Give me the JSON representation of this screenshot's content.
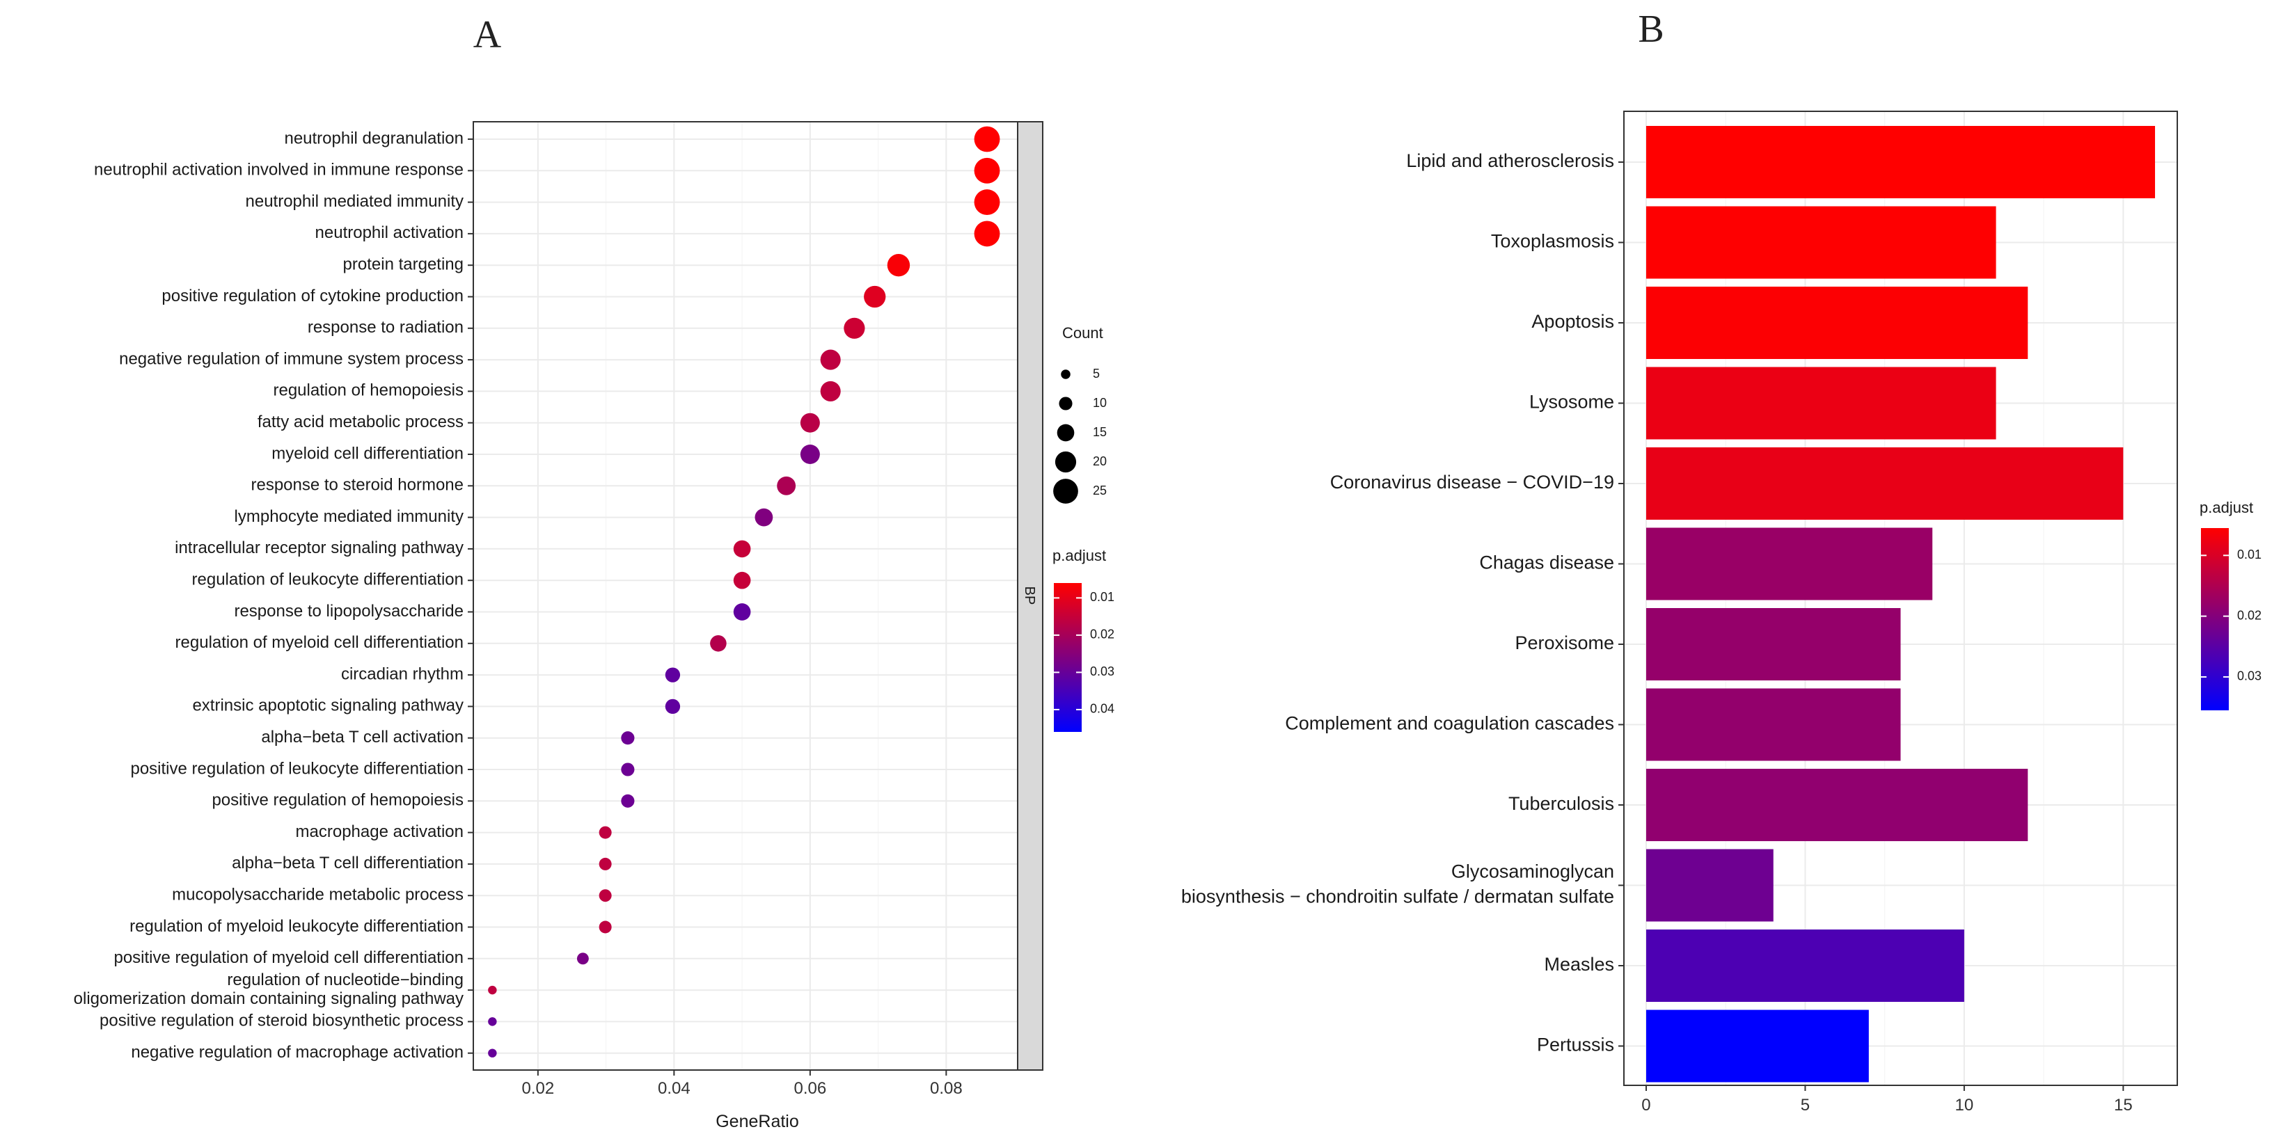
{
  "chart_data": [
    {
      "panel": "A",
      "type": "scatter",
      "title": "",
      "xlabel": "GeneRatio",
      "ylabel": "",
      "xlim": [
        0.0105,
        0.0905
      ],
      "xticks": [
        0.02,
        0.04,
        0.06,
        0.08
      ],
      "xtick_labels": [
        "0.02",
        "0.04",
        "0.06",
        "0.08"
      ],
      "grid": true,
      "facet_label": "BP",
      "categories": [
        "neutrophil degranulation",
        "neutrophil activation involved in immune response",
        "neutrophil mediated immunity",
        "neutrophil activation",
        "protein targeting",
        "positive regulation of cytokine production",
        "response to radiation",
        "negative regulation of immune system process",
        "regulation of hemopoiesis",
        "fatty acid metabolic process",
        "myeloid cell differentiation",
        "response to steroid hormone",
        "lymphocyte mediated immunity",
        "intracellular receptor signaling pathway",
        "regulation of leukocyte differentiation",
        "response to lipopolysaccharide",
        "regulation of myeloid cell differentiation",
        "circadian rhythm",
        "extrinsic apoptotic signaling pathway",
        "alpha−beta T cell activation",
        "positive regulation of leukocyte differentiation",
        "positive regulation of hemopoiesis",
        "macrophage activation",
        "alpha−beta T cell differentiation",
        "mucopolysaccharide metabolic process",
        "regulation of myeloid leukocyte differentiation",
        "positive regulation of myeloid cell differentiation",
        "regulation of nucleotide−binding\noligomerization domain containing signaling pathway",
        "positive regulation of steroid biosynthetic process",
        "negative regulation of macrophage activation"
      ],
      "gene_ratio": [
        0.086,
        0.086,
        0.086,
        0.086,
        0.073,
        0.0695,
        0.0665,
        0.063,
        0.063,
        0.06,
        0.06,
        0.0565,
        0.0532,
        0.05,
        0.05,
        0.05,
        0.0465,
        0.0398,
        0.0398,
        0.0332,
        0.0332,
        0.0332,
        0.0299,
        0.0299,
        0.0299,
        0.0299,
        0.0266,
        0.0133,
        0.0133,
        0.0133
      ],
      "count": [
        26,
        26,
        26,
        26,
        22,
        21,
        20,
        19,
        19,
        18,
        18,
        17,
        16,
        15,
        15,
        15,
        14,
        12,
        12,
        10,
        10,
        10,
        9,
        9,
        9,
        9,
        8,
        4,
        4,
        4
      ],
      "p_adjust": [
        0.006,
        0.006,
        0.006,
        0.006,
        0.007,
        0.011,
        0.014,
        0.016,
        0.016,
        0.017,
        0.027,
        0.019,
        0.026,
        0.015,
        0.015,
        0.031,
        0.018,
        0.031,
        0.031,
        0.029,
        0.029,
        0.029,
        0.016,
        0.016,
        0.016,
        0.016,
        0.027,
        0.016,
        0.03,
        0.03
      ],
      "size_legend": {
        "title": "Count",
        "values": [
          5,
          10,
          15,
          20,
          25
        ],
        "labels": [
          "5",
          "10",
          "15",
          "20",
          "25"
        ]
      },
      "color_legend": {
        "title": "p.adjust",
        "min": 0.006,
        "max": 0.046,
        "ticks": [
          0.01,
          0.02,
          0.03,
          0.04
        ],
        "labels": [
          "0.01",
          "0.02",
          "0.03",
          "0.04"
        ],
        "low_color": "#ff0000",
        "high_color": "#0000ff"
      }
    },
    {
      "panel": "B",
      "type": "bar",
      "orientation": "horizontal",
      "title": "",
      "xlabel": "",
      "ylabel": "",
      "xlim": [
        -0.7,
        16.7
      ],
      "xticks": [
        0,
        5,
        10,
        15
      ],
      "xtick_labels": [
        "0",
        "5",
        "10",
        "15"
      ],
      "grid": true,
      "categories": [
        "Lipid and atherosclerosis",
        "Toxoplasmosis",
        "Apoptosis",
        "Lysosome",
        "Coronavirus disease − COVID−19",
        "Chagas disease",
        "Peroxisome",
        "Complement and coagulation cascades",
        "Tuberculosis",
        "Glycosaminoglycan\nbiosynthesis − chondroitin sulfate / dermatan sulfate",
        "Measles",
        "Pertussis"
      ],
      "values": [
        16,
        11,
        12,
        11,
        15,
        9,
        8,
        8,
        12,
        4,
        10,
        7
      ],
      "p_adjust": [
        0.0055,
        0.0056,
        0.0058,
        0.0078,
        0.0082,
        0.0175,
        0.018,
        0.0182,
        0.0185,
        0.0225,
        0.0265,
        0.0355
      ],
      "color_legend": {
        "title": "p.adjust",
        "min": 0.0055,
        "max": 0.0355,
        "ticks": [
          0.01,
          0.02,
          0.03
        ],
        "labels": [
          "0.01",
          "0.02",
          "0.03"
        ],
        "low_color": "#ff0000",
        "high_color": "#0000ff"
      }
    }
  ],
  "panels": {
    "a_letter": "A",
    "b_letter": "B"
  }
}
